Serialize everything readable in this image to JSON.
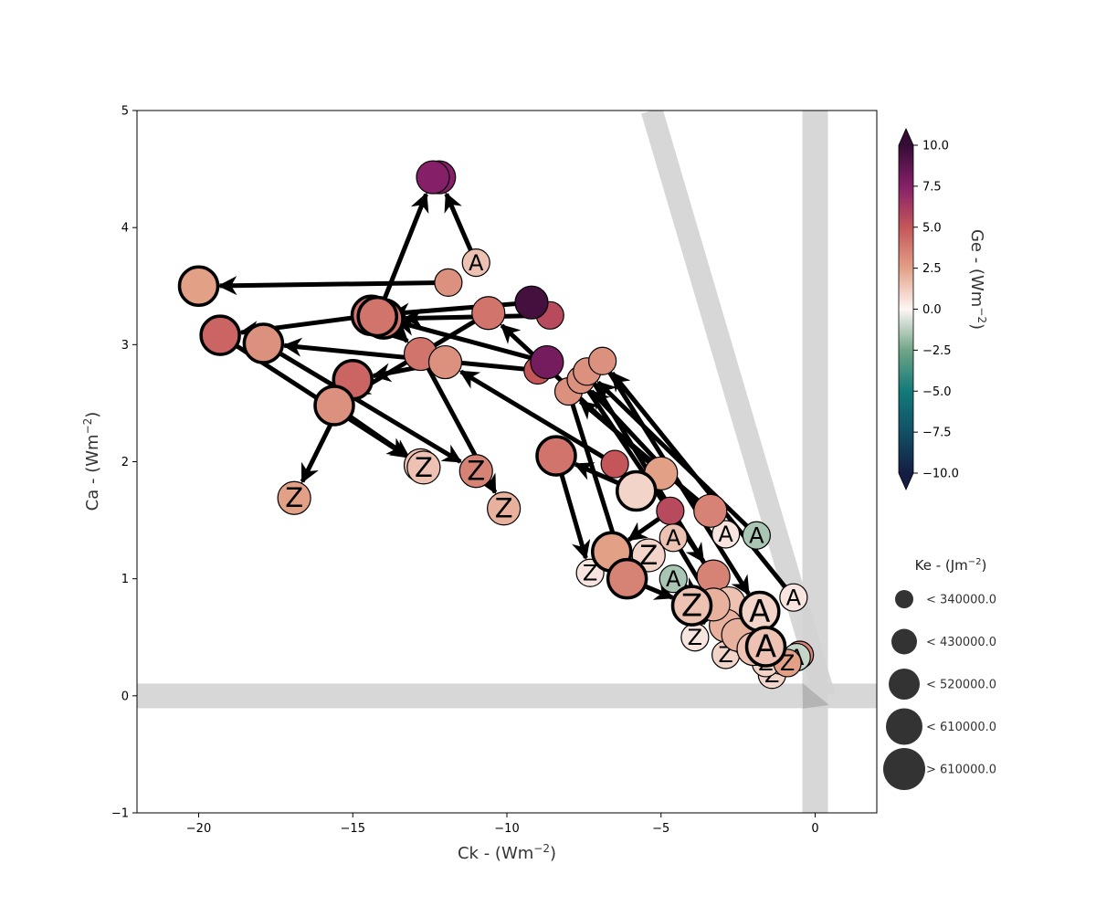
{
  "chart_data": {
    "type": "scatter",
    "xlabel": "Ck - (Wm",
    "xlabel_sup": "−2",
    "xlabel_end": ")",
    "ylabel": "Ca - (Wm",
    "ylabel_sup": "−2",
    "ylabel_end": ")",
    "xlim": [
      -22,
      2
    ],
    "ylim": [
      -1,
      5
    ],
    "xticks": [
      -20,
      -15,
      -10,
      -5,
      0
    ],
    "xtick_labels": [
      "−20",
      "−15",
      "−10",
      "−5",
      "0"
    ],
    "yticks": [
      -1,
      0,
      1,
      2,
      3,
      4,
      5
    ],
    "ytick_labels": [
      "−1",
      "0",
      "1",
      "2",
      "3",
      "4",
      "5"
    ],
    "reference_bands": [
      {
        "type": "horizontal",
        "y": 0,
        "color": "#d3d3d3"
      },
      {
        "type": "vertical",
        "x": 0,
        "color": "#d3d3d3"
      },
      {
        "type": "diagonal",
        "from": [
          -5.3,
          5
        ],
        "to": [
          0.3,
          0
        ],
        "color": "#d3d3d3"
      }
    ],
    "colorbar": {
      "label": "Ge - (Wm",
      "label_sup": "−2",
      "label_end": ")",
      "min": -10,
      "max": 10,
      "ticks": [
        10,
        7.5,
        5,
        2.5,
        0,
        -2.5,
        -5,
        -7.5,
        -10
      ],
      "tick_labels": [
        "10.0",
        "7.5",
        "5.0",
        "2.5",
        "0.0",
        "−2.5",
        "−5.0",
        "−7.5",
        "−10.0"
      ],
      "colormap": "curl"
    },
    "size_legend": {
      "title": "Ke - (Jm",
      "title_sup": "−2",
      "title_end": ")",
      "entries": [
        "< 340000.0",
        "< 430000.0",
        "< 520000.0",
        "< 610000.0",
        "> 610000.0"
      ]
    },
    "systems": [
      {
        "points": [
          {
            "x": -11.0,
            "y": 3.7,
            "ge": 1.5,
            "size": 1,
            "label": "A"
          },
          {
            "x": -12.2,
            "y": 4.43,
            "ge": 7.5,
            "size": 2,
            "label": ""
          }
        ]
      },
      {
        "points": [
          {
            "x": -11.9,
            "y": 3.53,
            "ge": 3.0,
            "size": 1,
            "label": ""
          },
          {
            "x": -20.0,
            "y": 3.5,
            "ge": 2.5,
            "size": 3,
            "label": ""
          }
        ]
      },
      {
        "points": [
          {
            "x": -9.2,
            "y": 3.36,
            "ge": 9.5,
            "size": 2,
            "label": ""
          },
          {
            "x": -14.4,
            "y": 3.25,
            "ge": 4.0,
            "size": 3,
            "label": ""
          },
          {
            "x": -19.3,
            "y": 3.08,
            "ge": 4.5,
            "size": 3,
            "label": ""
          },
          {
            "x": -12.8,
            "y": 1.97,
            "ge": 1.5,
            "size": 2,
            "label": "Z"
          }
        ]
      },
      {
        "points": [
          {
            "x": -8.6,
            "y": 3.25,
            "ge": 5.5,
            "size": 1,
            "label": ""
          },
          {
            "x": -14.0,
            "y": 3.22,
            "ge": 4.0,
            "size": 3,
            "label": ""
          },
          {
            "x": -12.8,
            "y": 2.92,
            "ge": 4.0,
            "size": 2,
            "label": ""
          },
          {
            "x": -10.1,
            "y": 1.6,
            "ge": 2.0,
            "size": 2,
            "label": "Z"
          }
        ]
      },
      {
        "points": [
          {
            "x": -8.7,
            "y": 2.85,
            "ge": 8.0,
            "size": 2,
            "label": ""
          },
          {
            "x": -14.2,
            "y": 3.24,
            "ge": 4.0,
            "size": 3,
            "label": ""
          },
          {
            "x": -12.4,
            "y": 4.43,
            "ge": 7.5,
            "size": 2,
            "label": ""
          }
        ]
      },
      {
        "points": [
          {
            "x": -9.0,
            "y": 2.78,
            "ge": 5.0,
            "size": 1,
            "label": ""
          },
          {
            "x": -17.9,
            "y": 3.01,
            "ge": 3.0,
            "size": 3,
            "label": ""
          },
          {
            "x": -11.0,
            "y": 1.92,
            "ge": 3.5,
            "size": 2,
            "label": "Z"
          }
        ]
      },
      {
        "points": [
          {
            "x": -6.5,
            "y": 1.98,
            "ge": 5.0,
            "size": 1,
            "label": ""
          },
          {
            "x": -12.0,
            "y": 2.85,
            "ge": 3.0,
            "size": 2,
            "label": ""
          },
          {
            "x": -15.0,
            "y": 2.7,
            "ge": 4.5,
            "size": 3,
            "label": ""
          },
          {
            "x": -16.9,
            "y": 1.69,
            "ge": 2.5,
            "size": 2,
            "label": "Z"
          }
        ]
      },
      {
        "points": [
          {
            "x": -5.0,
            "y": 1.9,
            "ge": 2.5,
            "size": 2,
            "label": ""
          },
          {
            "x": -10.6,
            "y": 3.27,
            "ge": 4.0,
            "size": 2,
            "label": ""
          },
          {
            "x": -15.6,
            "y": 2.48,
            "ge": 3.0,
            "size": 3,
            "label": ""
          },
          {
            "x": -12.7,
            "y": 1.95,
            "ge": 1.5,
            "size": 2,
            "label": "Z"
          }
        ]
      },
      {
        "points": [
          {
            "x": -5.8,
            "y": 1.75,
            "ge": 1.0,
            "size": 3,
            "label": ""
          },
          {
            "x": -8.4,
            "y": 2.05,
            "ge": 4.0,
            "size": 3,
            "label": ""
          },
          {
            "x": -7.3,
            "y": 1.05,
            "ge": 0.5,
            "size": 1,
            "label": "Z"
          }
        ]
      },
      {
        "points": [
          {
            "x": -4.7,
            "y": 1.58,
            "ge": 5.5,
            "size": 1,
            "label": ""
          },
          {
            "x": -6.6,
            "y": 1.23,
            "ge": 2.5,
            "size": 3,
            "label": ""
          },
          {
            "x": -5.4,
            "y": 1.2,
            "ge": 1.0,
            "size": 2,
            "label": "Z"
          }
        ]
      },
      {
        "points": [
          {
            "x": -3.4,
            "y": 1.58,
            "ge": 3.5,
            "size": 2,
            "label": ""
          },
          {
            "x": -8.0,
            "y": 2.6,
            "ge": 3.0,
            "size": 1,
            "label": ""
          },
          {
            "x": -6.1,
            "y": 1.0,
            "ge": 3.5,
            "size": 3,
            "label": ""
          },
          {
            "x": -4.0,
            "y": 0.77,
            "ge": 1.5,
            "size": 3,
            "label": "Z"
          }
        ]
      },
      {
        "points": [
          {
            "x": -2.9,
            "y": 1.38,
            "ge": 0.5,
            "size": 1,
            "label": "A"
          },
          {
            "x": -7.6,
            "y": 2.7,
            "ge": 3.0,
            "size": 1,
            "label": ""
          },
          {
            "x": -3.3,
            "y": 1.02,
            "ge": 3.5,
            "size": 2,
            "label": ""
          }
        ]
      },
      {
        "points": [
          {
            "x": -1.9,
            "y": 1.37,
            "ge": -1.5,
            "size": 1,
            "label": "A"
          },
          {
            "x": -7.4,
            "y": 2.77,
            "ge": 3.0,
            "size": 1,
            "label": ""
          },
          {
            "x": -2.8,
            "y": 0.79,
            "ge": 1.5,
            "size": 2,
            "label": ""
          }
        ]
      },
      {
        "points": [
          {
            "x": -0.7,
            "y": 0.84,
            "ge": 0.5,
            "size": 1,
            "label": "A"
          },
          {
            "x": -6.9,
            "y": 2.86,
            "ge": 3.0,
            "size": 1,
            "label": ""
          },
          {
            "x": -1.8,
            "y": 0.72,
            "ge": 1.0,
            "size": 3,
            "label": "A"
          }
        ]
      },
      {
        "points": [
          {
            "x": -4.6,
            "y": 1.35,
            "ge": 1.5,
            "size": 1,
            "label": "A"
          },
          {
            "x": -2.9,
            "y": 0.6,
            "ge": 2.0,
            "size": 2,
            "label": ""
          },
          {
            "x": -2.2,
            "y": 0.48,
            "ge": 1.0,
            "size": 2,
            "label": ""
          },
          {
            "x": -1.4,
            "y": 0.18,
            "ge": 1.0,
            "size": 1,
            "label": "Z"
          }
        ]
      },
      {
        "points": [
          {
            "x": -4.6,
            "y": 1.0,
            "ge": -1.5,
            "size": 1,
            "label": "A"
          },
          {
            "x": -3.3,
            "y": 0.78,
            "ge": 2.0,
            "size": 2,
            "label": ""
          },
          {
            "x": -3.9,
            "y": 0.5,
            "ge": 0.5,
            "size": 1,
            "label": "Z"
          }
        ]
      },
      {
        "points": [
          {
            "x": -2.8,
            "y": 0.8,
            "ge": -1.0,
            "size": 1,
            "label": "A"
          },
          {
            "x": -2.5,
            "y": 0.52,
            "ge": 2.0,
            "size": 2,
            "label": ""
          },
          {
            "x": -2.9,
            "y": 0.35,
            "ge": 1.0,
            "size": 1,
            "label": "Z"
          }
        ]
      },
      {
        "points": [
          {
            "x": -2.0,
            "y": 0.4,
            "ge": 1.5,
            "size": 2,
            "label": ""
          },
          {
            "x": -1.6,
            "y": 0.42,
            "ge": 1.5,
            "size": 3,
            "label": "A"
          },
          {
            "x": -1.1,
            "y": 0.3,
            "ge": -1.0,
            "size": 1,
            "label": "Z"
          }
        ]
      },
      {
        "points": [
          {
            "x": -0.5,
            "y": 0.35,
            "ge": 3.5,
            "size": 1,
            "label": "A"
          },
          {
            "x": -1.6,
            "y": 0.28,
            "ge": 1.0,
            "size": 1,
            "label": "Z"
          }
        ]
      },
      {
        "points": [
          {
            "x": -0.6,
            "y": 0.33,
            "ge": -1.0,
            "size": 1,
            "label": "A"
          },
          {
            "x": -0.9,
            "y": 0.28,
            "ge": 2.5,
            "size": 1,
            "label": "Z"
          }
        ]
      }
    ]
  }
}
